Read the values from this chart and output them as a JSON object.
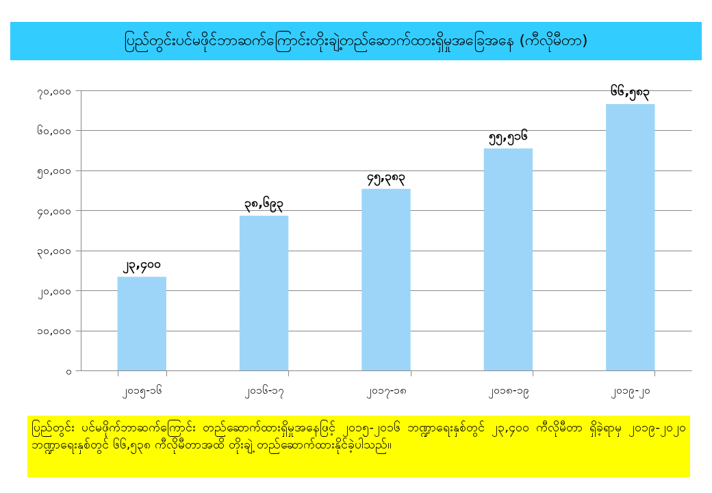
{
  "chart_data": {
    "type": "bar",
    "title": "ပြည်တွင်းပင်မဖိုင်ဘာဆက်ကြောင်းတိုးချဲ့တည်ဆောက်ထားရှိမှုအခြေအနေ (ကီလိုမီတာ)",
    "categories": [
      "၂၀၁၅-၁၆",
      "၂၀၁၆-၁၇",
      "၂၀၁၇-၁၈",
      "၂၀၁၈-၁၉",
      "၂၀၁၉-၂၀"
    ],
    "values": [
      23400,
      38693,
      45383,
      55516,
      66583
    ],
    "value_labels": [
      "၂၃,၄၀၀",
      "၃၈,၆၉၃",
      "၄၅,၃၈၃",
      "၅၅,၅၁၆",
      "၆၆,၅၈၃"
    ],
    "color": "#9dd5f8",
    "ylim": [
      0,
      70000
    ],
    "yticks": [
      {
        "value": 0,
        "label": "၀"
      },
      {
        "value": 10000,
        "label": "၁၀,၀၀၀"
      },
      {
        "value": 20000,
        "label": "၂၀,၀၀၀"
      },
      {
        "value": 30000,
        "label": "၃၀,၀၀၀"
      },
      {
        "value": 40000,
        "label": "၄၀,၀၀၀"
      },
      {
        "value": 50000,
        "label": "၅၀,၀၀၀"
      },
      {
        "value": 60000,
        "label": "၆၀,၀၀၀"
      },
      {
        "value": 70000,
        "label": "၇၀,၀၀၀"
      }
    ],
    "grid": "y",
    "annotations": [
      "ပြည်တွင်း ပင်မဖိုက်ဘာဆက်ကြောင်း တည်ဆောက်ထားရှိမှုအနေဖြင့် ၂၀၁၅-၂၀၁၆ ဘဏ္ဍာရေးနှစ်တွင် ၂၃,၄၀၀ ကီလိုမီတာ ရှိခဲ့ရာမှ ၂၀၁၉-၂၀၂၀ ဘဏ္ဍာရေးနှစ်တွင် ၆၆,၅၃၈ ကီလိုမီတာအထိ တိုးချဲ့ တည်ဆောက်ထားနိုင်ခဲ့ပါသည်။"
    ]
  }
}
